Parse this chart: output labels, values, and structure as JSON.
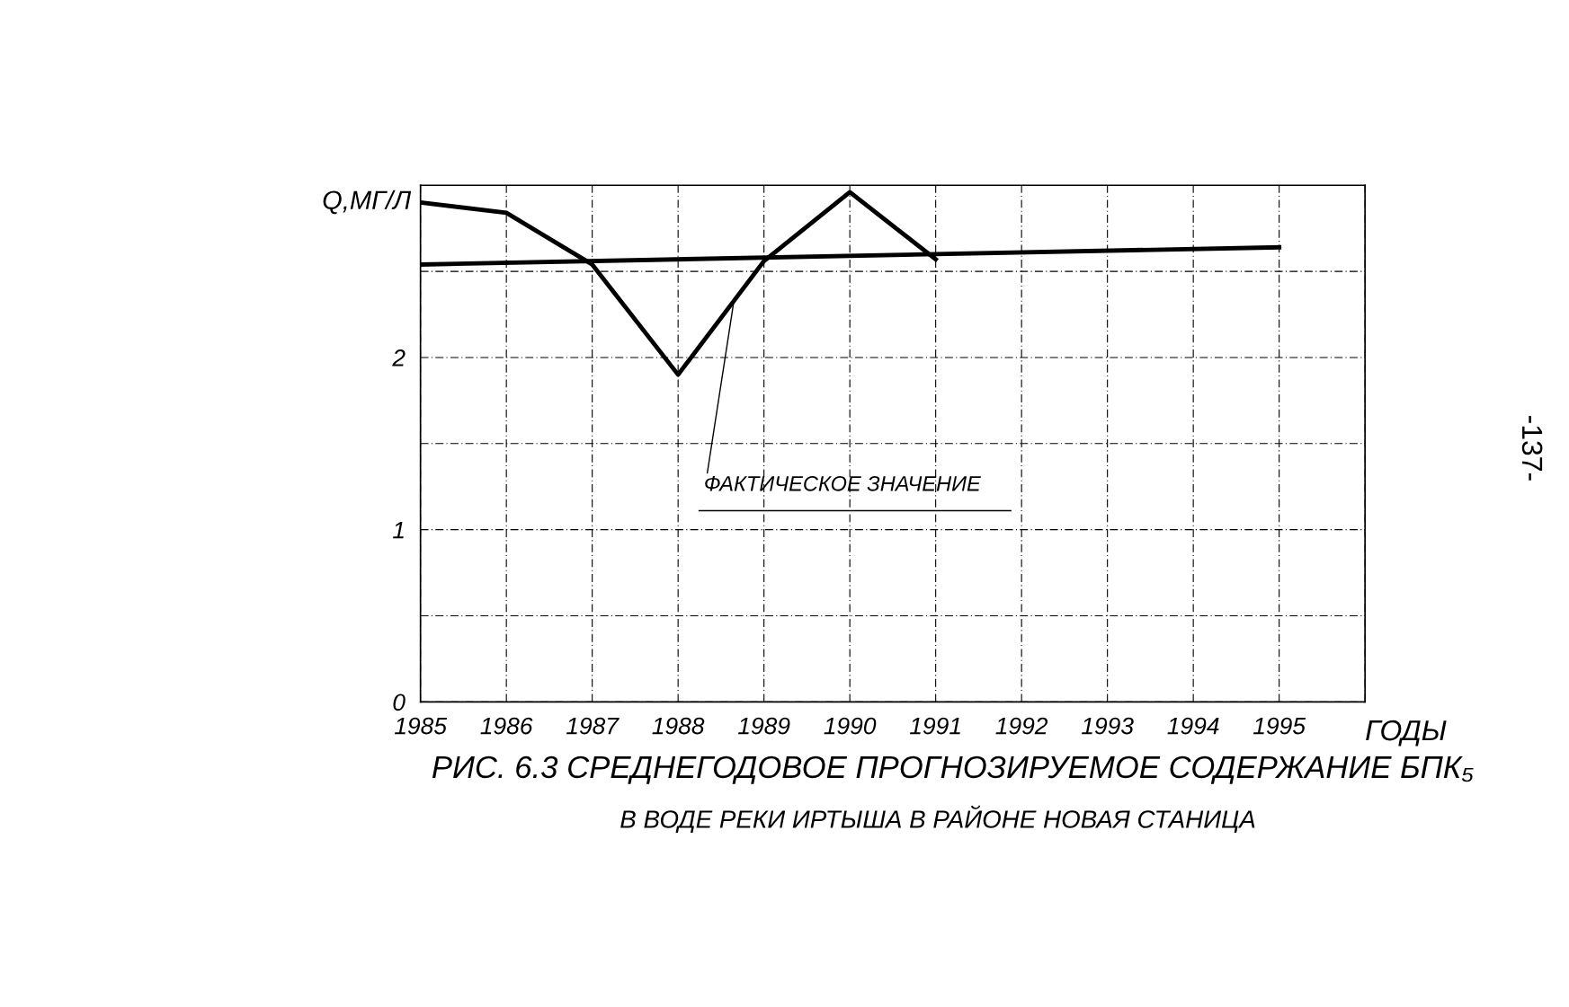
{
  "chart_data": {
    "type": "line",
    "title": "РИС. 6.3 СРЕДНЕГОДОВОЕ ПРОГНОЗИРУЕМОЕ СОДЕРЖАНИЕ БПК₅",
    "subtitle": "В ВОДЕ РЕКИ ИРТЫША В РАЙОНЕ НОВАЯ СТАНИЦА",
    "xlabel": "ГОДЫ",
    "ylabel": "Q,МГ/Л",
    "xlim": [
      1985,
      1996
    ],
    "xticks": [
      1985,
      1986,
      1987,
      1988,
      1989,
      1990,
      1991,
      1992,
      1993,
      1994,
      1995,
      {
        "value": 1996,
        "label": null
      }
    ],
    "ylim": [
      0,
      3
    ],
    "yticks": [
      0,
      {
        "value": 0.5,
        "label": null
      },
      1,
      {
        "value": 1.5,
        "label": null
      },
      2,
      {
        "value": 2.5,
        "label": null
      },
      {
        "value": 3,
        "label": null
      }
    ],
    "grid": true,
    "marker": "none",
    "line_style": "solid",
    "series": [
      {
        "name": "ФАКТИЧЕСКОЕ ЗНАЧЕНИЕ",
        "color": "#000000",
        "x": [
          1985,
          1986,
          1987,
          1988,
          1989,
          1990,
          1991
        ],
        "values": [
          2.9,
          2.84,
          2.54,
          1.9,
          2.56,
          2.96,
          2.57
        ]
      },
      {
        "color": "#000000",
        "x": [
          1985,
          1995
        ],
        "values": [
          2.54,
          2.64
        ]
      }
    ],
    "annotations": [
      "-137-"
    ]
  }
}
